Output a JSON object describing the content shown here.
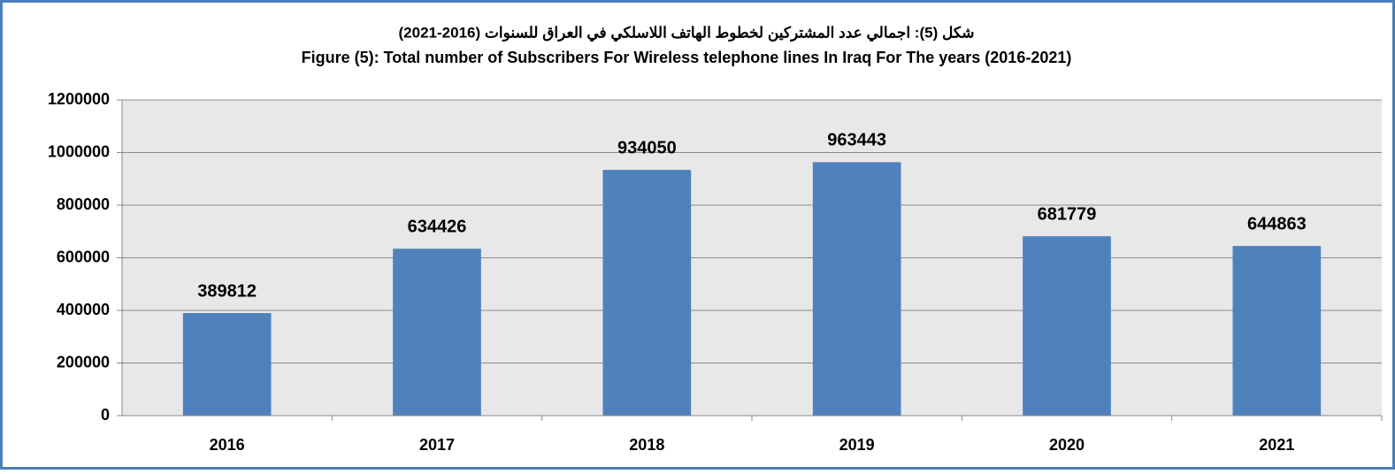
{
  "chart_data": {
    "type": "bar",
    "title": "شكل (5): اجمالي عدد المشتركين لخطوط الهاتف اللاسلكي في العراق للسنوات (2016-2021)",
    "subtitle": "Figure (5): Total  number of Subscribers For Wireless telephone  lines In Iraq For The years (2016-2021)",
    "categories": [
      "2016",
      "2017",
      "2018",
      "2019",
      "2020",
      "2021"
    ],
    "values": [
      389812,
      634426,
      934050,
      963443,
      681779,
      644863
    ],
    "color": "#4f81bd",
    "ylim": [
      0,
      1200000
    ],
    "yticks": [
      0,
      200000,
      400000,
      600000,
      800000,
      1000000,
      1200000
    ],
    "grid": true
  }
}
